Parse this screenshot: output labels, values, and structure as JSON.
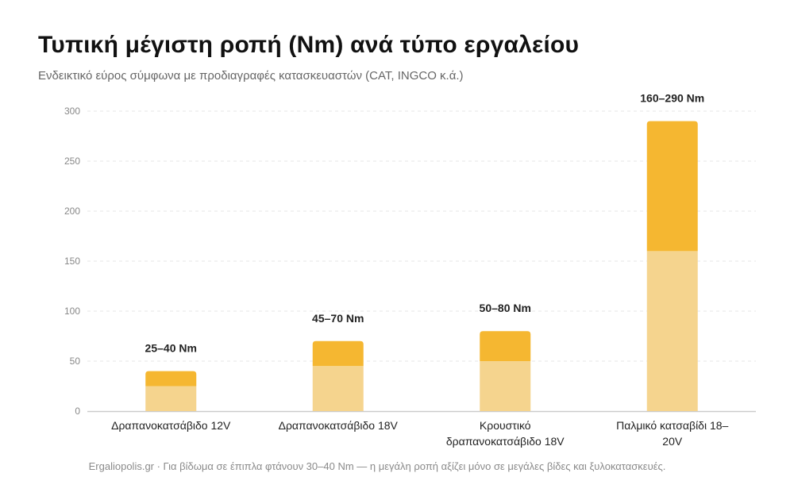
{
  "header": {
    "title": "Τυπική μέγιστη ροπή (Nm) ανά τύπο εργαλείου",
    "subtitle": "Ενδεικτικό εύρος σύμφωνα με προδιαγραφές κατασκευαστών (CAT, INGCO κ.ά.)"
  },
  "footer": {
    "note": "Ergaliopolis.gr · Για βίδωμα σε έπιπλα φτάνουν 30–40 Nm — η μεγάλη ροπή αξίζει μόνο σε μεγάλες βίδες και ξυλοκατασκευές."
  },
  "colors": {
    "min_segment": "#f5d48e",
    "range_segment": "#f5b731",
    "grid": "#e6e6e6",
    "axis": "#cccccc",
    "tick_text": "#888888",
    "category_text": "#222222",
    "value_label_text": "#222222"
  },
  "chart_data": {
    "type": "bar",
    "stacked": true,
    "categories": [
      [
        "Δραπανοκατσάβιδο 12V"
      ],
      [
        "Δραπανοκατσάβιδο 18V"
      ],
      [
        "Κρουστικό",
        "δραπανοκατσάβιδο 18V"
      ],
      [
        "Παλμικό κατσαβίδι 18–",
        "20V"
      ]
    ],
    "series": [
      {
        "values": [
          25,
          45,
          50,
          160
        ]
      },
      {
        "values": [
          15,
          25,
          30,
          130
        ]
      }
    ],
    "range_labels": [
      "25–40 Nm",
      "45–70 Nm",
      "50–80 Nm",
      "160–290 Nm"
    ],
    "ylim": [
      0,
      300
    ],
    "yticks": [
      0,
      50,
      100,
      150,
      200,
      250,
      300
    ],
    "grid": true,
    "legend": "none"
  }
}
